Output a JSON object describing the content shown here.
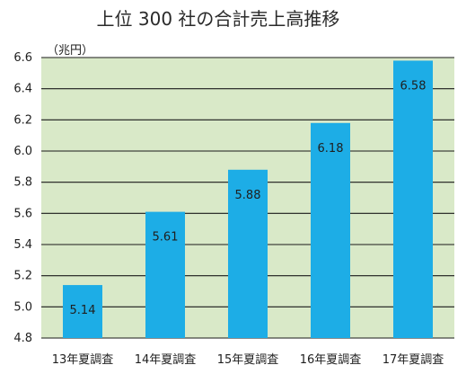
{
  "chart_data": {
    "type": "bar",
    "title": "上位 300 社の合計売上高推移",
    "ylabel": "（兆円）",
    "categories": [
      "13年夏調査",
      "14年夏調査",
      "15年夏調査",
      "16年夏調査",
      "17年夏調査"
    ],
    "values": [
      5.14,
      5.61,
      5.88,
      6.18,
      6.58
    ],
    "value_labels": [
      "5.14",
      "5.61",
      "5.88",
      "6.18",
      "6.58"
    ],
    "ylim": [
      4.8,
      6.6
    ],
    "yticks": [
      4.8,
      5.0,
      5.2,
      5.4,
      5.6,
      5.8,
      6.0,
      6.2,
      6.4,
      6.6
    ],
    "ytick_labels": [
      "4.8",
      "5.0",
      "5.2",
      "5.4",
      "5.6",
      "5.8",
      "6.0",
      "6.2",
      "6.4",
      "6.6"
    ],
    "grid": true,
    "colors": {
      "plot_background": "#d9e9c8",
      "bar": "#1dade6",
      "grid": "#1a1a1a",
      "text": "#1f1f1f"
    }
  }
}
